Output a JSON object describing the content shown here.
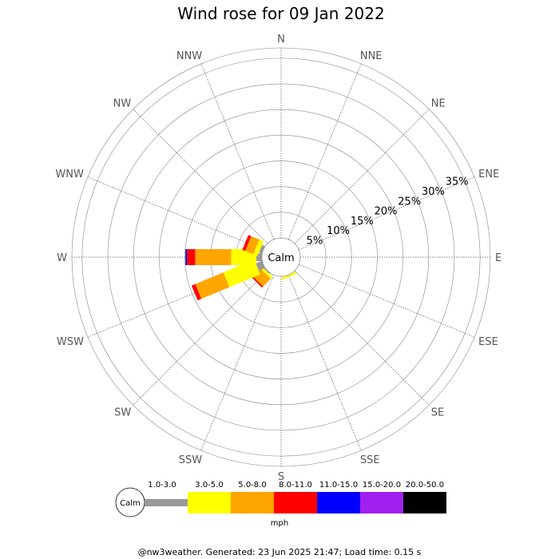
{
  "chart_data": {
    "type": "windrose",
    "title": "Wind rose for 09 Jan 2022",
    "directions": [
      "N",
      "NNE",
      "NE",
      "ENE",
      "E",
      "ESE",
      "SE",
      "SSE",
      "S",
      "SSW",
      "SW",
      "WSW",
      "W",
      "WNW",
      "NW",
      "NNW"
    ],
    "radial_ticks": [
      "5%",
      "10%",
      "15%",
      "20%",
      "25%",
      "30%",
      "35%"
    ],
    "radial_max": 37,
    "calm_label": "Calm",
    "units": "mph",
    "speed_bins": [
      {
        "label": "1.0-3.0",
        "color": "#999999"
      },
      {
        "label": "3.0-5.0",
        "color": "#ffff00"
      },
      {
        "label": "5.0-8.0",
        "color": "#ffa500"
      },
      {
        "label": "8.0-11.0",
        "color": "#ff0000"
      },
      {
        "label": "11.0-15.0",
        "color": "#0000ff"
      },
      {
        "label": "15.0-20.0",
        "color": "#a020f0"
      },
      {
        "label": "20.0-50.0",
        "color": "#000000"
      }
    ],
    "series": [
      {
        "name": "1.0-3.0",
        "values": [
          0,
          0,
          0,
          0,
          0,
          0,
          0,
          0,
          0,
          0,
          0,
          0.2,
          1.3,
          1.1,
          0.6,
          0,
          0
        ]
      },
      {
        "name": "3.0-5.0",
        "values": [
          0,
          0,
          0,
          0,
          0,
          0,
          0,
          0,
          0.4,
          0,
          0,
          0.5,
          6.5,
          4.9,
          0.9,
          0,
          0
        ]
      },
      {
        "name": "5.0-8.0",
        "values": [
          0,
          0,
          0,
          0,
          0,
          0,
          0,
          0,
          0,
          0,
          0,
          2.1,
          5.9,
          7.0,
          1.7,
          0,
          0
        ]
      },
      {
        "name": "8.0-11.0",
        "values": [
          0,
          0,
          0,
          0,
          0,
          0,
          0,
          0,
          0,
          0,
          0,
          0.3,
          0.8,
          1.6,
          0.6,
          0,
          0
        ]
      },
      {
        "name": "11.0-15.0",
        "values": [
          0,
          0,
          0,
          0,
          0,
          0,
          0,
          0,
          0,
          0,
          0,
          0,
          0,
          0.3,
          0,
          0,
          0
        ]
      },
      {
        "name": "15.0-20.0",
        "values": [
          0,
          0,
          0,
          0,
          0,
          0,
          0,
          0,
          0,
          0,
          0,
          0,
          0,
          0,
          0,
          0,
          0
        ]
      },
      {
        "name": "20.0-50.0",
        "values": [
          0,
          0,
          0,
          0,
          0,
          0,
          0,
          0,
          0,
          0,
          0,
          0,
          0,
          0,
          0,
          0,
          0
        ]
      }
    ],
    "grid": true
  },
  "footer": "@nw3weather. Generated: 23 Jun 2025 21:47; Load time: 0.15 s"
}
